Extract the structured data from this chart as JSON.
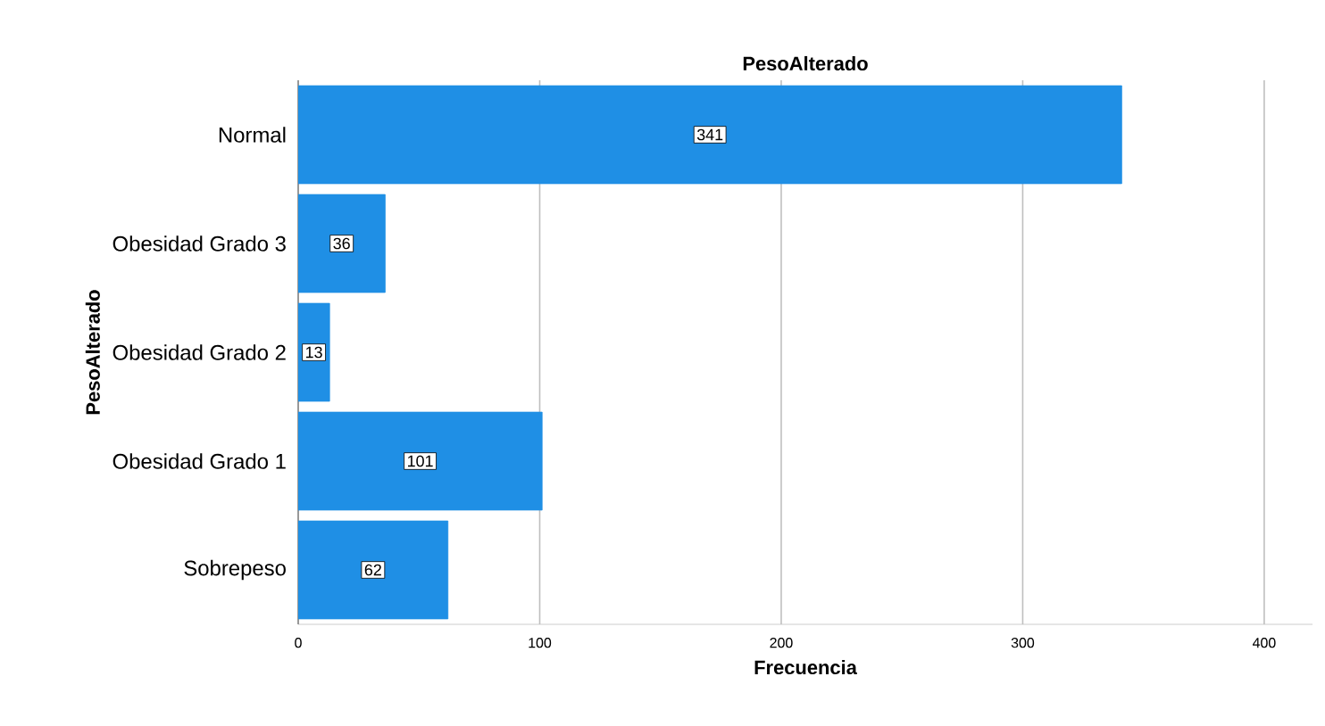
{
  "chart_data": {
    "type": "bar",
    "orientation": "horizontal",
    "title": "PesoAlterado",
    "xlabel": "Frecuencia",
    "ylabel": "PesoAlterado",
    "categories": [
      "Normal",
      "Obesidad Grado 3",
      "Obesidad Grado 2",
      "Obesidad Grado 1",
      "Sobrepeso"
    ],
    "values": [
      341,
      36,
      13,
      101,
      62
    ],
    "color": "#1f8fe5",
    "xlim": [
      0,
      420
    ],
    "xticks": [
      0,
      100,
      200,
      300,
      400
    ],
    "grid": "x",
    "data_labels": true
  }
}
